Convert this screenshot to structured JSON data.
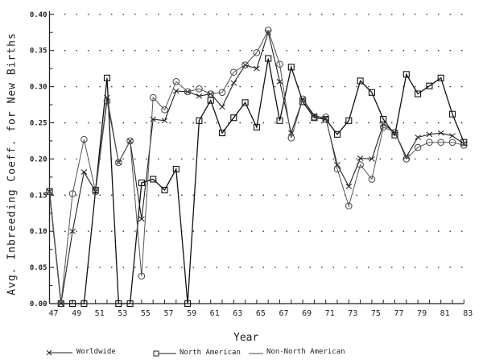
{
  "chart_data": {
    "type": "line",
    "title": "",
    "xlabel": "Year",
    "ylabel": "Avg. Inbreeding Coeff. for New Births",
    "ylim": [
      0.0,
      0.4
    ],
    "xlim": [
      47,
      83
    ],
    "grid": "horizontal dotted",
    "legend_position": "bottom",
    "y_ticks": [
      "0.00",
      "0.05",
      "0.10",
      "0.15",
      "0.20",
      "0.25",
      "0.30",
      "0.35",
      "0.40"
    ],
    "x_ticks": [
      "47",
      "49",
      "51",
      "53",
      "55",
      "57",
      "59",
      "61",
      "63",
      "65",
      "67",
      "69",
      "71",
      "73",
      "75",
      "77",
      "79",
      "81",
      "83"
    ],
    "x": [
      47,
      48,
      49,
      50,
      51,
      52,
      53,
      54,
      55,
      56,
      57,
      58,
      59,
      60,
      61,
      62,
      63,
      64,
      65,
      66,
      67,
      68,
      69,
      70,
      71,
      72,
      73,
      74,
      75,
      76,
      77,
      78,
      79,
      80,
      81,
      82,
      83
    ],
    "series": [
      {
        "name": "Worldwide",
        "marker": "x",
        "values": [
          0.155,
          0.0,
          0.1,
          0.182,
          0.155,
          0.285,
          0.195,
          0.225,
          0.117,
          0.255,
          0.253,
          0.294,
          0.293,
          0.287,
          0.29,
          0.272,
          0.305,
          0.33,
          0.325,
          0.375,
          0.307,
          0.236,
          0.283,
          0.26,
          0.256,
          0.192,
          0.162,
          0.201,
          0.2,
          0.248,
          0.237,
          0.203,
          0.23,
          0.234,
          0.236,
          0.232,
          0.221
        ]
      },
      {
        "name": "North American",
        "marker": "square",
        "values": [
          0.155,
          0.0,
          0.0,
          0.0,
          0.157,
          0.312,
          0.0,
          0.0,
          0.167,
          0.172,
          0.157,
          0.186,
          0.0,
          0.253,
          0.281,
          0.236,
          0.257,
          0.278,
          0.244,
          0.339,
          0.253,
          0.327,
          0.279,
          0.257,
          0.255,
          0.234,
          0.253,
          0.308,
          0.292,
          0.255,
          0.233,
          0.317,
          0.29,
          0.301,
          0.312,
          0.262,
          0.223
        ]
      },
      {
        "name": "Non-North American",
        "marker": "circle",
        "values": [
          0.155,
          0.0,
          0.152,
          0.227,
          0.155,
          0.28,
          0.195,
          0.225,
          0.038,
          0.285,
          0.268,
          0.307,
          0.293,
          0.297,
          0.29,
          0.292,
          0.32,
          0.33,
          0.347,
          0.378,
          0.331,
          0.229,
          0.283,
          0.258,
          0.258,
          0.186,
          0.135,
          0.192,
          0.172,
          0.244,
          0.237,
          0.2,
          0.216,
          0.223,
          0.223,
          0.223,
          0.219
        ]
      }
    ]
  },
  "legend": {
    "items": [
      {
        "label": "Worldwide",
        "marker": "x-icon"
      },
      {
        "label": "North American",
        "marker": "square-icon"
      },
      {
        "label": "Non-North American",
        "marker": "line-icon"
      }
    ]
  },
  "colors": {
    "ink": "#222222",
    "grid": "#333333",
    "background": "#ffffff"
  }
}
